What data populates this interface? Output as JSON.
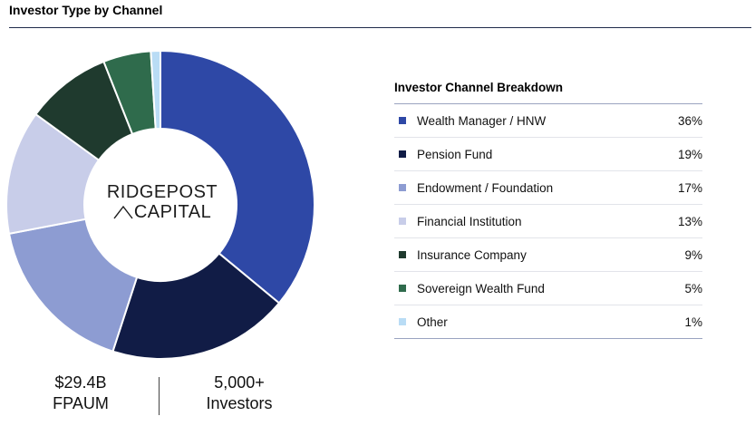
{
  "page_title": "Investor Type by Channel",
  "logo": {
    "line1": "RIDGEPOST",
    "line2": "CAPITAL"
  },
  "metrics": {
    "aum_value": "$29.4B",
    "aum_label": "FPAUM",
    "investors_value": "5,000+",
    "investors_label": "Investors"
  },
  "table": {
    "title": "Investor Channel Breakdown",
    "rows": [
      {
        "label": "Wealth Manager / HNW",
        "value": "36%",
        "color": "#2e48a6"
      },
      {
        "label": "Pension Fund",
        "value": "19%",
        "color": "#111c46"
      },
      {
        "label": "Endowment / Foundation",
        "value": "17%",
        "color": "#8d9cd2"
      },
      {
        "label": "Financial Institution",
        "value": "13%",
        "color": "#c8cde9"
      },
      {
        "label": "Insurance Company",
        "value": "9%",
        "color": "#1f3a2e"
      },
      {
        "label": "Sovereign Wealth Fund",
        "value": "5%",
        "color": "#2f6b4c"
      },
      {
        "label": "Other",
        "value": "1%",
        "color": "#b9dcf5"
      }
    ]
  },
  "chart_data": {
    "type": "pie",
    "style": "donut",
    "categories": [
      "Wealth Manager / HNW",
      "Pension Fund",
      "Endowment / Foundation",
      "Financial Institution",
      "Insurance Company",
      "Sovereign Wealth Fund",
      "Other"
    ],
    "values": [
      36,
      19,
      17,
      13,
      9,
      5,
      1
    ],
    "colors": [
      "#2e48a6",
      "#111c46",
      "#8d9cd2",
      "#c8cde9",
      "#1f3a2e",
      "#2f6b4c",
      "#b9dcf5"
    ],
    "title": "Investor Type by Channel"
  }
}
